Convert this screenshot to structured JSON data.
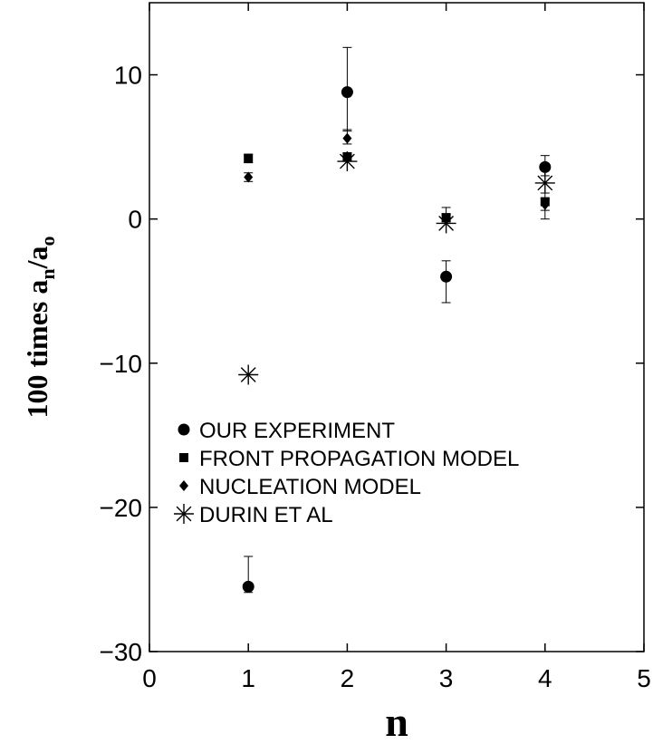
{
  "chart_data": {
    "type": "scatter",
    "title": "",
    "xlabel": "n",
    "ylabel_main": "100 times a",
    "ylabel_sub1": "n",
    "ylabel_mid": "/a",
    "ylabel_sub2": "o",
    "xlim": [
      0,
      5
    ],
    "ylim": [
      -30,
      15
    ],
    "xticks": [
      0,
      1,
      2,
      3,
      4,
      5
    ],
    "yticks": [
      -30,
      -20,
      -10,
      0,
      10
    ],
    "grid": false,
    "legend_position": "left",
    "series": [
      {
        "name": "OUR EXPERIMENT",
        "marker": "circle",
        "points": [
          {
            "x": 1,
            "y": -25.5,
            "err_low": -25.9,
            "err_high": -23.4
          },
          {
            "x": 2,
            "y": 8.8,
            "err_low": 6.1,
            "err_high": 11.9
          },
          {
            "x": 3,
            "y": -4.0,
            "err_low": -5.8,
            "err_high": -2.9
          },
          {
            "x": 4,
            "y": 3.6,
            "err_low": 3.0,
            "err_high": 4.4
          }
        ]
      },
      {
        "name": "FRONT PROPAGATION MODEL",
        "marker": "square",
        "points": [
          {
            "x": 1,
            "y": 4.2,
            "err_low": 3.9,
            "err_high": 4.5
          },
          {
            "x": 2,
            "y": 4.3,
            "err_low": 4.0,
            "err_high": 4.6
          },
          {
            "x": 3,
            "y": 0.1,
            "err_low": -0.3,
            "err_high": 0.8
          },
          {
            "x": 4,
            "y": 1.2,
            "err_low": 0.0,
            "err_high": 1.8
          }
        ]
      },
      {
        "name": "NUCLEATION MODEL",
        "marker": "diamond",
        "points": [
          {
            "x": 1,
            "y": 2.9,
            "err_low": 2.6,
            "err_high": 3.2
          },
          {
            "x": 2,
            "y": 5.6,
            "err_low": 5.2,
            "err_high": 6.2
          },
          {
            "x": 3,
            "y": 0.0,
            "err_low": -0.2,
            "err_high": 0.3
          },
          {
            "x": 4,
            "y": 1.0,
            "err_low": 0.6,
            "err_high": 1.4
          }
        ]
      },
      {
        "name": "DURIN ET AL",
        "marker": "asterisk",
        "points": [
          {
            "x": 1,
            "y": -10.8
          },
          {
            "x": 2,
            "y": 4.0
          },
          {
            "x": 3,
            "y": -0.3
          },
          {
            "x": 4,
            "y": 2.5
          }
        ]
      }
    ]
  }
}
